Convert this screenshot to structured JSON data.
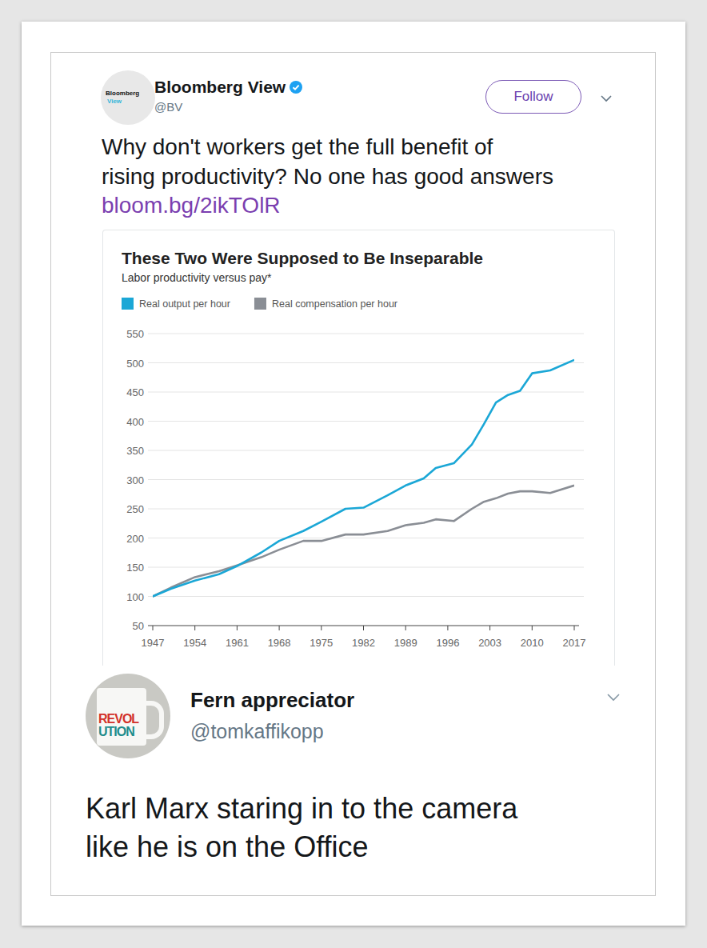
{
  "tweet": {
    "avatar_text": [
      "Bloomberg",
      "View"
    ],
    "name": "Bloomberg View",
    "handle": "@BV",
    "follow": "Follow",
    "text": [
      "Why don't workers get the full benefit of",
      "rising productivity? No one has good answers"
    ],
    "link": "bloom.bg/2ikTOlR"
  },
  "chart_data": {
    "type": "line",
    "title": "These Two Were Supposed to Be Inseparable",
    "subtitle": "Labor productivity versus pay*",
    "x": [
      1947,
      1950,
      1954,
      1958,
      1961,
      1965,
      1968,
      1972,
      1975,
      1979,
      1982,
      1986,
      1989,
      1992,
      1994,
      1997,
      2000,
      2002,
      2004,
      2006,
      2008,
      2010,
      2013,
      2017
    ],
    "series": [
      {
        "name": "Real output per hour",
        "color": "#1ba7d6",
        "values": [
          100,
          113,
          127,
          138,
          152,
          175,
          195,
          212,
          228,
          250,
          252,
          273,
          290,
          302,
          320,
          328,
          360,
          395,
          432,
          445,
          452,
          482,
          487,
          505
        ]
      },
      {
        "name": "Real compensation per hour",
        "color": "#8a8e95",
        "values": [
          100,
          115,
          133,
          143,
          153,
          167,
          180,
          195,
          195,
          206,
          206,
          212,
          222,
          226,
          232,
          229,
          250,
          262,
          268,
          276,
          280,
          280,
          277,
          290
        ]
      }
    ],
    "xlim": [
      1947,
      2017
    ],
    "xticks": [
      1947,
      1954,
      1961,
      1968,
      1975,
      1982,
      1989,
      1996,
      2003,
      2010,
      2017
    ],
    "ylim": [
      50,
      550
    ],
    "yticks": [
      50,
      100,
      150,
      200,
      250,
      300,
      350,
      400,
      450,
      500,
      550
    ],
    "grid": true,
    "legend": "top-left"
  },
  "reply": {
    "avatar_text": [
      "REVOL",
      "UTION"
    ],
    "name": "Fern appreciator",
    "handle": "@tomkaffikopp",
    "text": [
      "Karl Marx staring in to the camera",
      "like he is on the Office"
    ]
  }
}
